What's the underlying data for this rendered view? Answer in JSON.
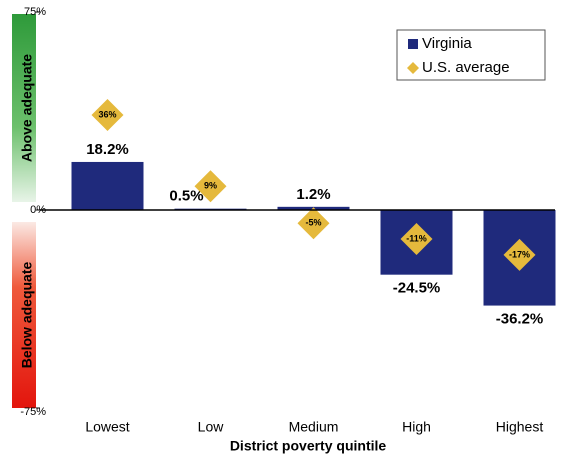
{
  "chart_data": {
    "type": "bar",
    "x_label": "District poverty quintile",
    "annotations": [
      "Above adequate",
      "Below adequate"
    ],
    "categories": [
      "Lowest",
      "Low",
      "Medium",
      "High",
      "Highest"
    ],
    "series": [
      {
        "name": "Virginia",
        "color": "#1f2a7c",
        "marker": "bar",
        "values": [
          18.2,
          0.5,
          1.2,
          -24.5,
          -36.2
        ],
        "value_labels": [
          "18.2%",
          "0.5%",
          "1.2%",
          "-24.5%",
          "-36.2%"
        ]
      },
      {
        "name": "U.S. average",
        "color": "#e5b93c",
        "marker": "diamond",
        "values": [
          36,
          9,
          -5,
          -11,
          -17
        ],
        "value_labels": [
          "36%",
          "9%",
          "-5%",
          "-11%",
          "-17%"
        ]
      }
    ],
    "ylim": [
      -75,
      75
    ],
    "yticks": [
      {
        "value": -75,
        "label": "-75%"
      },
      {
        "value": 0,
        "label": "0%"
      },
      {
        "value": 75,
        "label": "75%"
      }
    ],
    "legend": "top-right"
  }
}
